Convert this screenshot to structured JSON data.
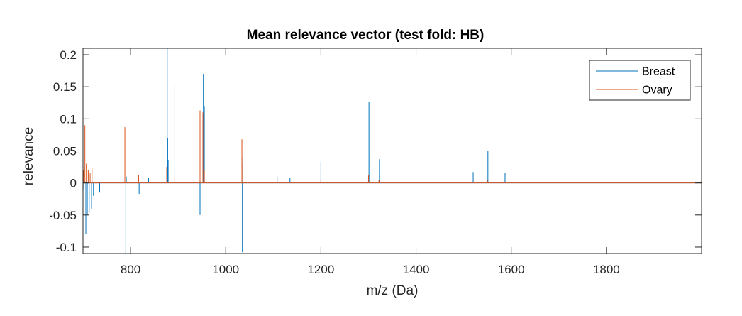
{
  "chart_data": {
    "type": "line",
    "title": "Mean relevance vector (test fold: HB)",
    "xlabel": "m/z (Da)",
    "ylabel": "relevance",
    "xlim": [
      700,
      2000
    ],
    "ylim": [
      -0.11,
      0.21
    ],
    "x_ticks": [
      800,
      1000,
      1200,
      1400,
      1600,
      1800
    ],
    "x_tick_labels": [
      "800",
      "1000",
      "1200",
      "1400",
      "1600",
      "1800"
    ],
    "y_ticks": [
      0.2,
      0.15,
      0.1,
      0.05,
      0,
      -0.05,
      -0.1
    ],
    "y_tick_labels": [
      "0.2",
      "0.15",
      "0.1",
      "0.05",
      "0",
      "-0.05",
      "-0.1"
    ],
    "grid": false,
    "legend_position": "top-right",
    "series": [
      {
        "name": "Breast",
        "color": "#0072BD",
        "spikes": [
          [
            702,
            -0.01
          ],
          [
            706,
            -0.08
          ],
          [
            709,
            -0.05
          ],
          [
            713,
            -0.045
          ],
          [
            718,
            -0.04
          ],
          [
            722,
            -0.02
          ],
          [
            735,
            -0.015
          ],
          [
            790,
            -0.11
          ],
          [
            791,
            0.01
          ],
          [
            818,
            -0.017
          ],
          [
            838,
            0.008
          ],
          [
            877,
            0.21
          ],
          [
            878,
            0.07
          ],
          [
            879,
            0.035
          ],
          [
            893,
            0.152
          ],
          [
            946,
            -0.05
          ],
          [
            953,
            0.17
          ],
          [
            955,
            0.12
          ],
          [
            1035,
            -0.108
          ],
          [
            1036,
            0.04
          ],
          [
            1108,
            0.01
          ],
          [
            1135,
            0.008
          ],
          [
            1200,
            0.033
          ],
          [
            1301,
            0.127
          ],
          [
            1303,
            0.04
          ],
          [
            1323,
            0.037
          ],
          [
            1520,
            0.017
          ],
          [
            1551,
            0.05
          ],
          [
            1587,
            0.016
          ]
        ]
      },
      {
        "name": "Ovary",
        "color": "#D95319",
        "spikes": [
          [
            701,
            0.02
          ],
          [
            704,
            0.09
          ],
          [
            707,
            0.03
          ],
          [
            711,
            0.02
          ],
          [
            715,
            0.015
          ],
          [
            719,
            0.024
          ],
          [
            788,
            0.087
          ],
          [
            817,
            0.013
          ],
          [
            876,
            0.025
          ],
          [
            893,
            0.015
          ],
          [
            946,
            0.113
          ],
          [
            952,
            0.11
          ],
          [
            955,
            0.02
          ],
          [
            1034,
            0.068
          ],
          [
            1036,
            0.03
          ],
          [
            1200,
            0.004
          ],
          [
            1300,
            0.012
          ],
          [
            1322,
            0.005
          ],
          [
            1550,
            0.004
          ]
        ]
      }
    ]
  }
}
